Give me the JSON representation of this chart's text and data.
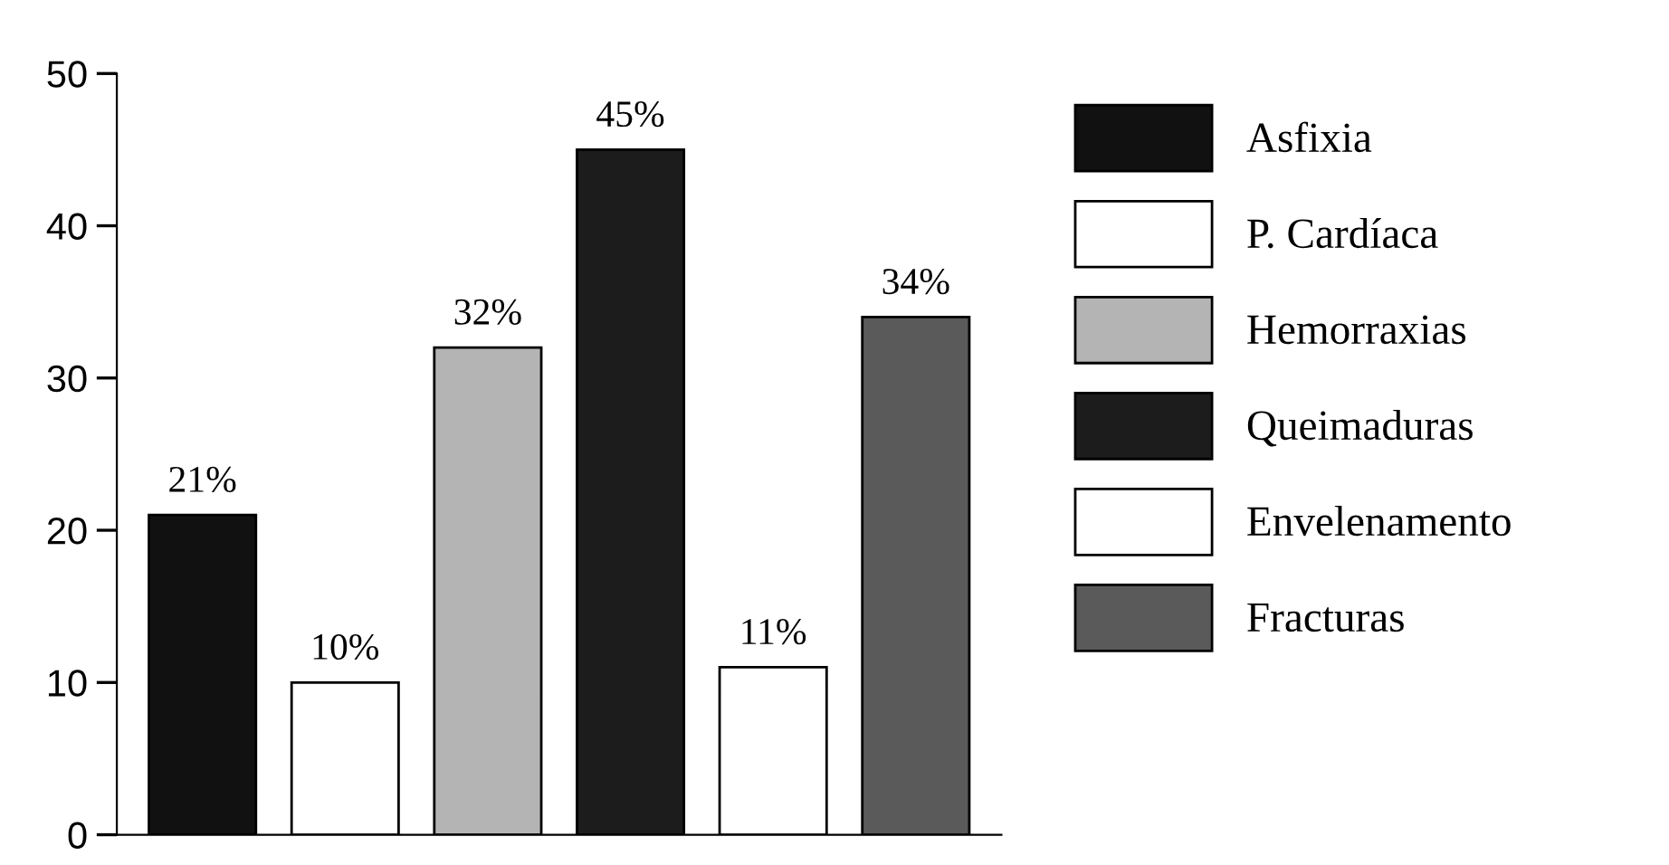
{
  "chart_data": {
    "type": "bar",
    "categories": [
      null,
      null,
      null,
      null,
      null,
      null
    ],
    "series": [
      {
        "name": "Asfixia",
        "color": "#111111",
        "values": [
          21,
          null,
          null,
          null,
          null,
          null
        ],
        "value_labels": [
          "21%",
          null,
          null,
          null,
          null,
          null
        ]
      },
      {
        "name": "P. Cardíaca",
        "color": "#ffffff",
        "values": [
          null,
          10,
          null,
          null,
          null,
          null
        ],
        "value_labels": [
          null,
          "10%",
          null,
          null,
          null,
          null
        ]
      },
      {
        "name": "Hemorraxias",
        "color": "#b4b4b4",
        "values": [
          null,
          null,
          32,
          null,
          null,
          null
        ],
        "value_labels": [
          null,
          null,
          "32%",
          null,
          null,
          null
        ]
      },
      {
        "name": "Queimaduras",
        "color": "#1c1c1c",
        "values": [
          null,
          null,
          null,
          45,
          null,
          null
        ],
        "value_labels": [
          null,
          null,
          null,
          "45%",
          null,
          null
        ]
      },
      {
        "name": "Envelenamento",
        "color": "#ffffff",
        "values": [
          null,
          null,
          null,
          null,
          11,
          null
        ],
        "value_labels": [
          null,
          null,
          null,
          null,
          "11%",
          null
        ]
      },
      {
        "name": "Fracturas",
        "color": "#5a5a5a",
        "values": [
          null,
          null,
          null,
          null,
          null,
          34
        ],
        "value_labels": [
          null,
          null,
          null,
          null,
          null,
          "34%"
        ]
      }
    ],
    "ylim": [
      0,
      50
    ],
    "yticks": [
      0,
      10,
      20,
      30,
      40,
      50
    ],
    "grid": false,
    "legend": "right"
  }
}
